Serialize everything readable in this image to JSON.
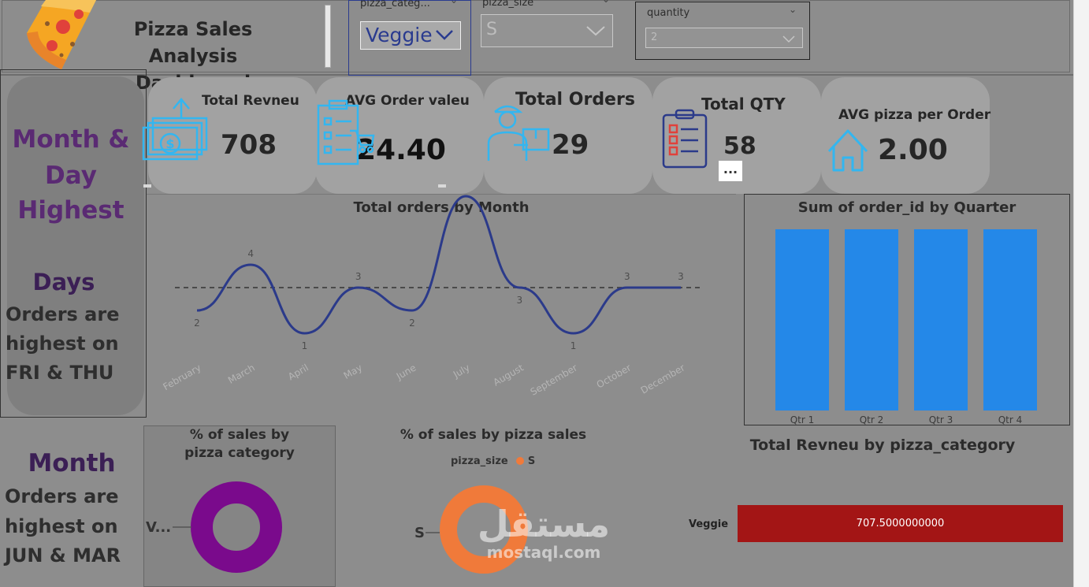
{
  "header": {
    "title_line1": "Pizza Sales Analysis",
    "title_line2": "Dashboard",
    "logo_icon": "pizza-slice-icon"
  },
  "slicers": {
    "category": {
      "label": "pizza_categ...",
      "value": "Veggie"
    },
    "size": {
      "label": "pizza_size",
      "value": "S"
    },
    "quantity": {
      "label": "quantity",
      "value": "2"
    }
  },
  "left_panel": {
    "heading_line1": "Month &",
    "heading_line2": "Day",
    "heading_line3": "Highest",
    "days_heading": "Days",
    "days_line1": "Orders are",
    "days_line2": "highest on",
    "days_line3": "FRI & THU",
    "month_heading": "Month",
    "month_line1": "Orders are",
    "month_line2": "highest on",
    "month_line3": "JUN & MAR"
  },
  "kpis": [
    {
      "label": "Total Revneu",
      "value": "708",
      "icon": "money-growth-icon"
    },
    {
      "label": "AVG Order valeu",
      "value": "24.40",
      "icon": "order-checklist-cart-icon"
    },
    {
      "label": "Total Orders",
      "value": "29",
      "icon": "delivery-person-icon"
    },
    {
      "label": "Total QTY",
      "value": "58",
      "icon": "clipboard-list-icon"
    },
    {
      "label": "AVG pizza per Order",
      "value": "2.00",
      "icon": "house-icon"
    }
  ],
  "more_options": "...",
  "colors": {
    "line": "#2b3a8a",
    "bar": "#2488e8",
    "donut_category": "#7a0a8c",
    "donut_size": "#f07a3a",
    "hbar": "#a31515",
    "icon": "#33b6f0"
  },
  "chart_data": [
    {
      "type": "line",
      "title": "Total orders by Month",
      "categories": [
        "February",
        "March",
        "April",
        "May",
        "June",
        "July",
        "August",
        "September",
        "October",
        "December"
      ],
      "values": [
        2,
        4,
        1,
        3,
        2,
        7,
        3,
        1,
        3,
        3
      ],
      "average_line": 3,
      "xlabel": "",
      "ylabel": ""
    },
    {
      "type": "bar",
      "title": "Sum of order_id by Quarter",
      "categories": [
        "Qtr 1",
        "Qtr 2",
        "Qtr 3",
        "Qtr 4"
      ],
      "values": [
        1,
        1,
        1,
        1
      ]
    },
    {
      "type": "pie",
      "title": "% of sales by pizza category",
      "labels": [
        "V..."
      ],
      "values": [
        100
      ]
    },
    {
      "type": "pie",
      "title": "% of sales by pizza sales",
      "legend_title": "pizza_size",
      "legend": [
        "S"
      ],
      "labels": [
        "S"
      ],
      "values": [
        100
      ]
    },
    {
      "type": "bar",
      "orientation": "horizontal",
      "title": "Total Revneu by pizza_category",
      "categories": [
        "Veggie"
      ],
      "values": [
        707.5
      ],
      "value_labels": [
        "707.5000000000"
      ]
    }
  ],
  "watermark": {
    "line1": "مستقل",
    "line2": "mostaql.com"
  }
}
